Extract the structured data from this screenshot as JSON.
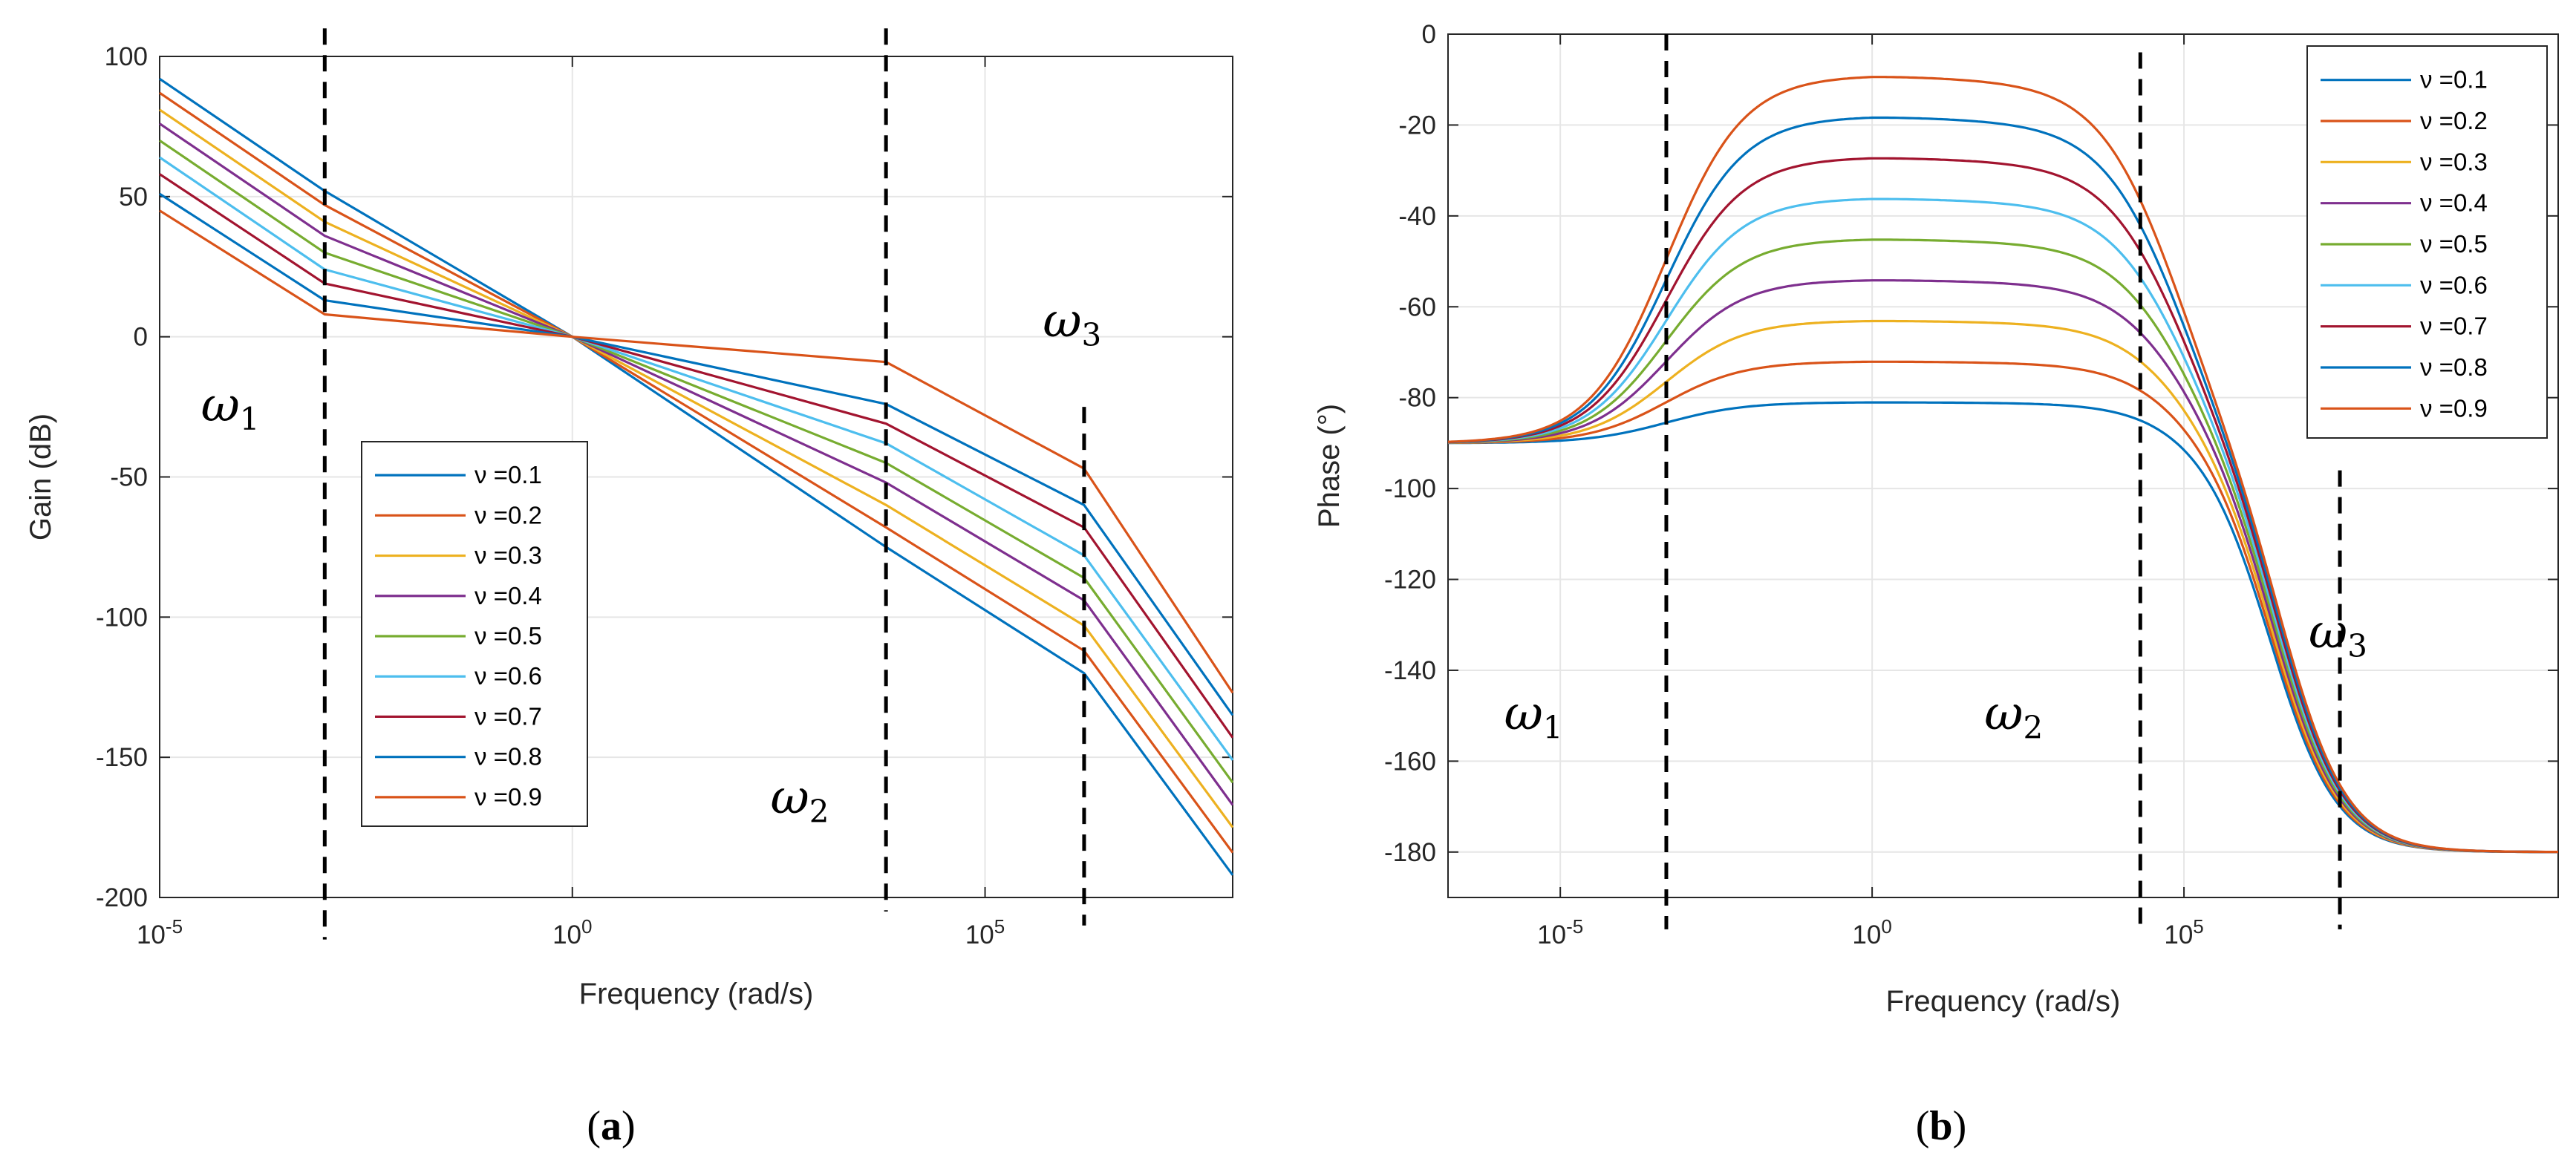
{
  "figure": {
    "panel_a_label": "a",
    "panel_b_label": "b"
  },
  "chart_data": [
    {
      "type": "line",
      "id": "a",
      "xlabel": "Frequency (rad/s)",
      "ylabel": "Gain (dB)",
      "xscale": "log",
      "xlim_log10": [
        -5,
        8
      ],
      "ylim": [
        -200,
        100
      ],
      "yticks": [
        100,
        50,
        0,
        -50,
        -100,
        -150,
        -200
      ],
      "xtick_labels": [
        {
          "base": "10",
          "exp": "-5",
          "log10": -5
        },
        {
          "base": "10",
          "exp": "0",
          "log10": 0
        },
        {
          "base": "10",
          "exp": "5",
          "log10": 5
        }
      ],
      "grid": true,
      "legend_position": "lower-left",
      "annotations": [
        {
          "symbol": "ω",
          "sub": "1",
          "x_log10": -4.5,
          "y": -30
        },
        {
          "symbol": "ω",
          "sub": "2",
          "x_log10": 2.4,
          "y": -170
        },
        {
          "symbol": "ω",
          "sub": "3",
          "x_log10": 5.7,
          "y": 0
        }
      ],
      "dashed_vlines": [
        {
          "x_log10": -3,
          "y_range": [
            -215,
            110
          ]
        },
        {
          "x_log10": 3.8,
          "y_range": [
            -205,
            110
          ]
        },
        {
          "x_log10": 6.2,
          "y_range": [
            -210,
            -25
          ]
        }
      ],
      "x_log10_points": [
        -5,
        -3,
        0,
        3.8,
        6.2,
        8
      ],
      "series": [
        {
          "name": "ν =0.1",
          "color": "#0072BD",
          "values": [
            92,
            52,
            0,
            -75,
            -120,
            -192
          ]
        },
        {
          "name": "ν =0.2",
          "color": "#D95319",
          "values": [
            87,
            47,
            0,
            -68,
            -112,
            -184
          ]
        },
        {
          "name": "ν =0.3",
          "color": "#EDB120",
          "values": [
            81,
            41,
            0,
            -60,
            -103,
            -175
          ]
        },
        {
          "name": "ν =0.4",
          "color": "#7E2F8E",
          "values": [
            76,
            36,
            0,
            -52,
            -94,
            -167
          ]
        },
        {
          "name": "ν =0.5",
          "color": "#77AC30",
          "values": [
            70,
            30,
            0,
            -45,
            -86,
            -159
          ]
        },
        {
          "name": "ν =0.6",
          "color": "#4DBEEE",
          "values": [
            64,
            24,
            0,
            -38,
            -78,
            -151
          ]
        },
        {
          "name": "ν =0.7",
          "color": "#A2142F",
          "values": [
            58,
            19,
            0,
            -31,
            -68,
            -143
          ]
        },
        {
          "name": "ν =0.8",
          "color": "#0072BD",
          "values": [
            51,
            13,
            0,
            -24,
            -60,
            -135
          ]
        },
        {
          "name": "ν =0.9",
          "color": "#D95319",
          "values": [
            45,
            8,
            0,
            -9,
            -47,
            -127
          ]
        }
      ]
    },
    {
      "type": "line",
      "id": "b",
      "xlabel": "Frequency (rad/s)",
      "ylabel": "Phase (°)",
      "xscale": "log",
      "xlim_log10": [
        -6.8,
        11
      ],
      "ylim": [
        -190,
        0
      ],
      "yticks": [
        0,
        -20,
        -40,
        -60,
        -80,
        -100,
        -120,
        -140,
        -160,
        -180
      ],
      "xtick_labels": [
        {
          "base": "10",
          "exp": "-5",
          "log10": -5
        },
        {
          "base": "10",
          "exp": "0",
          "log10": 0
        },
        {
          "base": "10",
          "exp": "5",
          "log10": 5
        }
      ],
      "grid": true,
      "legend_position": "top-right",
      "annotations": [
        {
          "symbol": "ω",
          "sub": "1",
          "x_log10": -5.9,
          "y": -153
        },
        {
          "symbol": "ω",
          "sub": "2",
          "x_log10": 1.8,
          "y": -153
        },
        {
          "symbol": "ω",
          "sub": "3",
          "x_log10": 7.0,
          "y": -135
        }
      ],
      "dashed_vlines": [
        {
          "x_log10": -3.3,
          "y_range": [
            -197,
            0
          ]
        },
        {
          "x_log10": 4.3,
          "y_range": [
            -197,
            -4
          ]
        },
        {
          "x_log10": 7.5,
          "y_range": [
            -197,
            -96
          ]
        }
      ],
      "phase_model": {
        "low_corner_log10": -3.3,
        "high_corner_log10": 6.5,
        "transition_width": 0.62
      },
      "series": [
        {
          "name": "ν =0.1",
          "color": "#0072BD",
          "nu": 0.1
        },
        {
          "name": "ν =0.2",
          "color": "#D95319",
          "nu": 0.2
        },
        {
          "name": "ν =0.3",
          "color": "#EDB120",
          "nu": 0.3
        },
        {
          "name": "ν =0.4",
          "color": "#7E2F8E",
          "nu": 0.4
        },
        {
          "name": "ν =0.5",
          "color": "#77AC30",
          "nu": 0.5
        },
        {
          "name": "ν =0.6",
          "color": "#4DBEEE",
          "nu": 0.6
        },
        {
          "name": "ν =0.7",
          "color": "#A2142F",
          "nu": 0.7
        },
        {
          "name": "ν =0.8",
          "color": "#0072BD",
          "nu": 0.8
        },
        {
          "name": "ν =0.9",
          "color": "#D95319",
          "nu": 0.9
        }
      ]
    }
  ]
}
